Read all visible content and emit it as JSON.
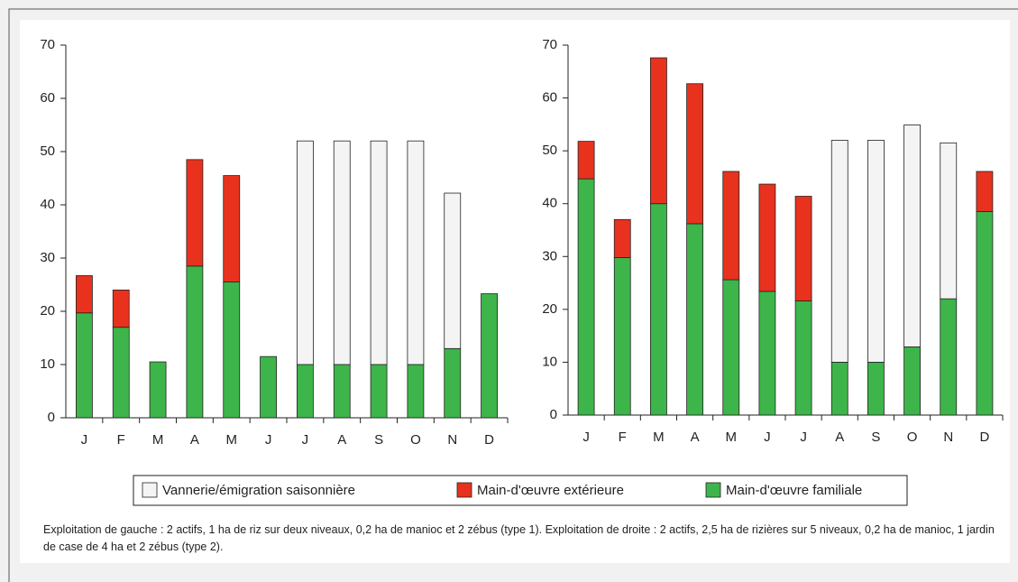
{
  "chart_data": [
    {
      "type": "stacked-bar",
      "categories": [
        "J",
        "F",
        "M",
        "A",
        "M",
        "J",
        "J",
        "A",
        "S",
        "O",
        "N",
        "D"
      ],
      "series": [
        {
          "name": "Vannerie/émigration saisonnière",
          "color": "#f4f4f4",
          "values": [
            0,
            0,
            0,
            0,
            0,
            0,
            42,
            42,
            42,
            42,
            29.2,
            0
          ]
        },
        {
          "name": "Main-d'œuvre extérieure",
          "color": "#e8321e",
          "values": [
            7,
            7,
            0,
            20,
            20,
            0,
            0,
            0,
            0,
            0,
            0,
            0
          ]
        },
        {
          "name": "Main-d'œuvre familiale",
          "color": "#3db54a",
          "values": [
            19.7,
            17,
            10.5,
            28.5,
            25.5,
            11.5,
            10,
            10,
            10,
            10,
            13,
            23.3
          ]
        }
      ],
      "ylim": [
        0,
        70
      ],
      "yticks": [
        0,
        10,
        20,
        30,
        40,
        50,
        60,
        70
      ]
    },
    {
      "type": "stacked-bar",
      "categories": [
        "J",
        "F",
        "M",
        "A",
        "M",
        "J",
        "J",
        "A",
        "S",
        "O",
        "N",
        "D"
      ],
      "series": [
        {
          "name": "Vannerie/émigration saisonnière",
          "color": "#f4f4f4",
          "values": [
            0,
            0,
            0,
            0,
            0,
            0,
            0,
            42,
            42,
            42,
            29.5,
            0
          ]
        },
        {
          "name": "Main-d'œuvre extérieure",
          "color": "#e8321e",
          "values": [
            7.1,
            7.2,
            27.6,
            26.5,
            20.5,
            20.3,
            19.8,
            0,
            0,
            0,
            0,
            7.6
          ]
        },
        {
          "name": "Main-d'œuvre familiale",
          "color": "#3db54a",
          "values": [
            44.7,
            29.8,
            40,
            36.2,
            25.6,
            23.4,
            21.6,
            10,
            10,
            12.9,
            22,
            38.5
          ]
        }
      ],
      "ylim": [
        0,
        70
      ],
      "yticks": [
        0,
        10,
        20,
        30,
        40,
        50,
        60,
        70
      ]
    }
  ],
  "caption": "Exploitation de gauche : 2 actifs, 1 ha de riz sur deux niveaux, 0,2 ha de manioc et 2 zébus (type 1). Exploitation de droite : 2 actifs, 2,5 ha de rizières sur 5 niveaux, 0,2 ha de manioc, 1 jardin de case de 4 ha et 2 zébus (type 2)."
}
